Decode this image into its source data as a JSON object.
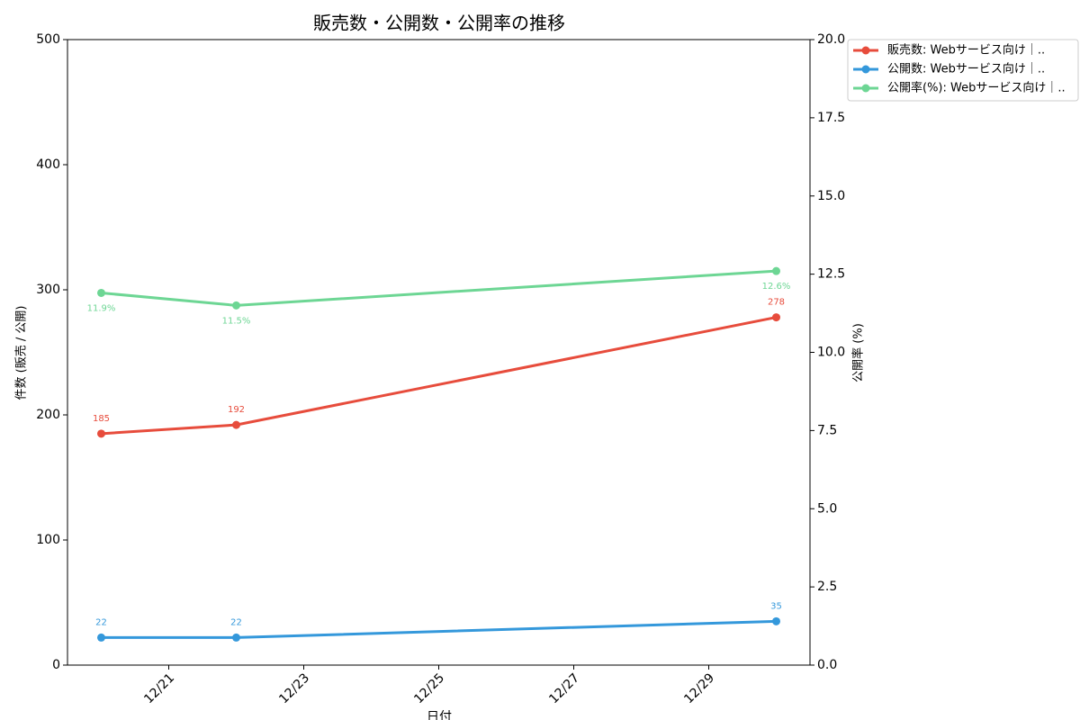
{
  "chart_data": {
    "type": "line",
    "title": "販売数・公開数・公開率の推移",
    "x_label": "日付",
    "y_label": "件数 (販売 / 公開)",
    "y2_label": "公開率 (%)",
    "x": [
      "12/20",
      "12/22",
      "12/30"
    ],
    "xticks": [
      "12/21",
      "12/23",
      "12/25",
      "12/27",
      "12/29"
    ],
    "ylim": [
      0,
      500
    ],
    "yticks": [
      0,
      100,
      200,
      300,
      400,
      500
    ],
    "y2lim": [
      0,
      20
    ],
    "y2ticks": [
      {
        "value": 0,
        "label": "0.0"
      },
      2.5,
      {
        "value": 5,
        "label": "5.0"
      },
      7.5,
      {
        "value": 10,
        "label": "10.0"
      },
      12.5,
      {
        "value": 15,
        "label": "15.0"
      },
      17.5,
      {
        "value": 20,
        "label": "20.0"
      }
    ],
    "grid": false,
    "legend": "upper right outside",
    "series": [
      {
        "name": "販売数: Webサービス向け｜..",
        "color": "#e74c3c",
        "values": [
          185,
          192,
          278
        ]
      },
      {
        "name": "公開数: Webサービス向け｜..",
        "color": "#3498db",
        "values": [
          22,
          22,
          35
        ]
      },
      {
        "name": "公開率(%): Webサービス向け｜..",
        "color": "#6dd694",
        "axis": "y2",
        "values": [
          11.9,
          11.5,
          12.6
        ],
        "value_labels": [
          "11.9%",
          "11.5%",
          "12.6%"
        ]
      }
    ]
  }
}
